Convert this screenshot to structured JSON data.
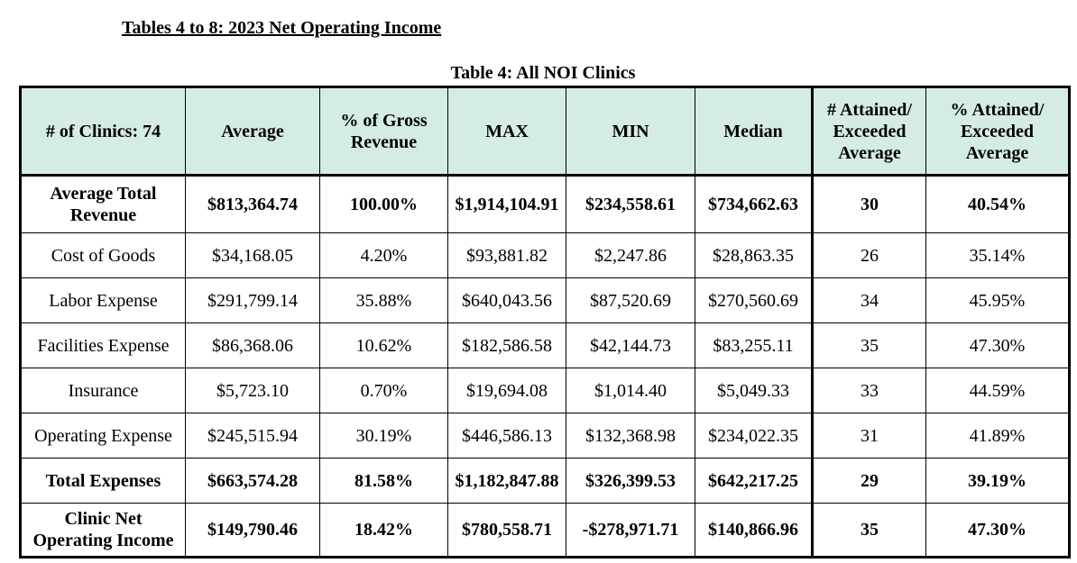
{
  "document": {
    "heading": "Tables 4 to 8: 2023 Net Operating Income"
  },
  "table": {
    "caption": "Table 4: All NOI Clinics",
    "header_bg_color": "#d5ece5",
    "columns": [
      "# of Clinics: 74",
      "Average",
      "% of Gross Revenue",
      "MAX",
      "MIN",
      "Median",
      "# Attained/ Exceeded Average",
      "% Attained/ Exceeded Average"
    ],
    "rows": [
      {
        "label": "Average Total Revenue",
        "bold": true,
        "cells": [
          "$813,364.74",
          "100.00%",
          "$1,914,104.91",
          "$234,558.61",
          "$734,662.63",
          "30",
          "40.54%"
        ]
      },
      {
        "label": "Cost of Goods",
        "bold": false,
        "cells": [
          "$34,168.05",
          "4.20%",
          "$93,881.82",
          "$2,247.86",
          "$28,863.35",
          "26",
          "35.14%"
        ]
      },
      {
        "label": "Labor Expense",
        "bold": false,
        "cells": [
          "$291,799.14",
          "35.88%",
          "$640,043.56",
          "$87,520.69",
          "$270,560.69",
          "34",
          "45.95%"
        ]
      },
      {
        "label": "Facilities Expense",
        "bold": false,
        "cells": [
          "$86,368.06",
          "10.62%",
          "$182,586.58",
          "$42,144.73",
          "$83,255.11",
          "35",
          "47.30%"
        ]
      },
      {
        "label": "Insurance",
        "bold": false,
        "cells": [
          "$5,723.10",
          "0.70%",
          "$19,694.08",
          "$1,014.40",
          "$5,049.33",
          "33",
          "44.59%"
        ]
      },
      {
        "label": "Operating Expense",
        "bold": false,
        "cells": [
          "$245,515.94",
          "30.19%",
          "$446,586.13",
          "$132,368.98",
          "$234,022.35",
          "31",
          "41.89%"
        ]
      },
      {
        "label": "Total Expenses",
        "bold": true,
        "cells": [
          "$663,574.28",
          "81.58%",
          "$1,182,847.88",
          "$326,399.53",
          "$642,217.25",
          "29",
          "39.19%"
        ]
      },
      {
        "label": "Clinic Net Operating Income",
        "bold": true,
        "cells": [
          "$149,790.46",
          "18.42%",
          "$780,558.71",
          "-$278,971.71",
          "$140,866.96",
          "35",
          "47.30%"
        ]
      }
    ]
  }
}
